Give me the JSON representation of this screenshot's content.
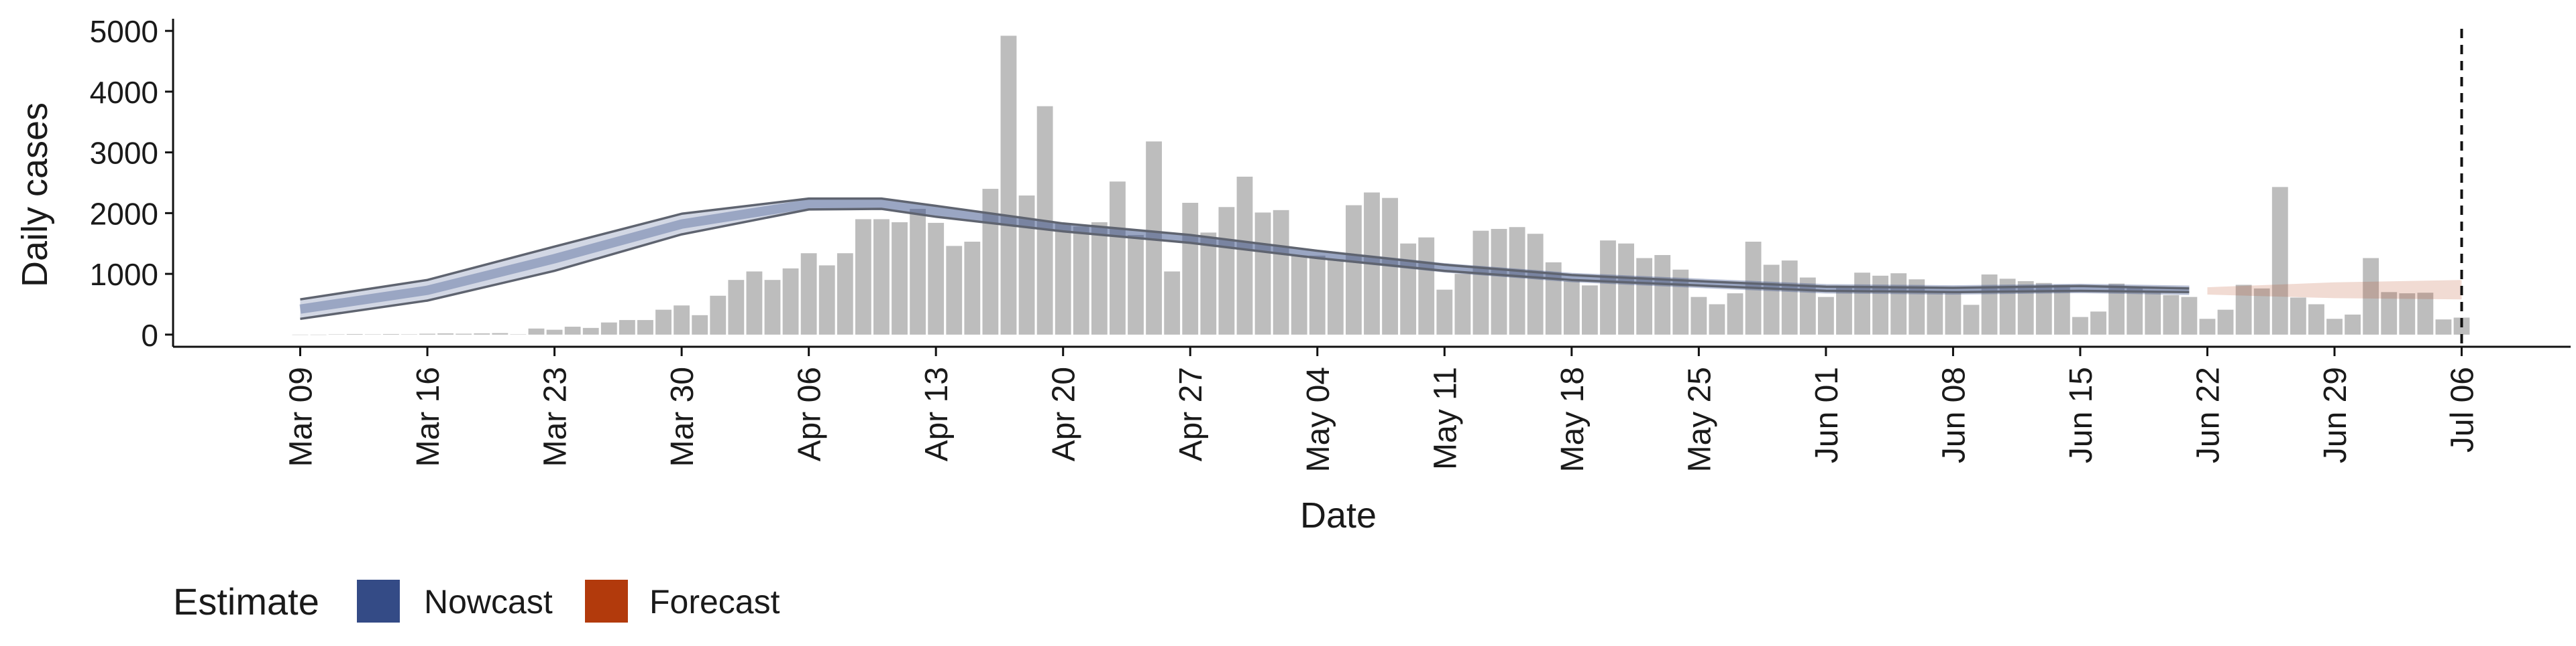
{
  "chart_data": {
    "type": "bar",
    "title": "",
    "xlabel": "Date",
    "ylabel": "Daily cases",
    "ylim": [
      -200,
      5200
    ],
    "y_ticks": [
      0,
      1000,
      2000,
      3000,
      4000,
      5000
    ],
    "x_tick_labels": [
      "Mar 09",
      "Mar 16",
      "Mar 23",
      "Mar 30",
      "Apr 06",
      "Apr 13",
      "Apr 20",
      "Apr 27",
      "May 04",
      "May 11",
      "May 18",
      "May 25",
      "Jun 01",
      "Jun 08",
      "Jun 15",
      "Jun 22",
      "Jun 29",
      "Jul 06"
    ],
    "x_tick_dates": [
      "2020-03-09",
      "2020-03-16",
      "2020-03-23",
      "2020-03-30",
      "2020-04-06",
      "2020-04-13",
      "2020-04-20",
      "2020-04-27",
      "2020-05-04",
      "2020-05-11",
      "2020-05-18",
      "2020-05-25",
      "2020-06-01",
      "2020-06-08",
      "2020-06-15",
      "2020-06-22",
      "2020-06-29",
      "2020-07-06"
    ],
    "x_range": [
      "2020-03-02",
      "2020-07-12"
    ],
    "grid": false,
    "legend": {
      "title": "Estimate",
      "placement": "bottom-left",
      "items": [
        {
          "label": "Nowcast",
          "color": "#344b86"
        },
        {
          "label": "Forecast",
          "color": "#b23a0c"
        }
      ]
    },
    "reference_line": {
      "date": "2020-07-06",
      "style": "dashed"
    },
    "bar_color": "#bdbdbd",
    "bars": [
      [
        "2020-03-09",
        0
      ],
      [
        "2020-03-10",
        0
      ],
      [
        "2020-03-11",
        5
      ],
      [
        "2020-03-12",
        10
      ],
      [
        "2020-03-13",
        5
      ],
      [
        "2020-03-14",
        10
      ],
      [
        "2020-03-15",
        5
      ],
      [
        "2020-03-16",
        15
      ],
      [
        "2020-03-17",
        20
      ],
      [
        "2020-03-18",
        15
      ],
      [
        "2020-03-19",
        20
      ],
      [
        "2020-03-20",
        25
      ],
      [
        "2020-03-21",
        5
      ],
      [
        "2020-03-22",
        100
      ],
      [
        "2020-03-23",
        80
      ],
      [
        "2020-03-24",
        130
      ],
      [
        "2020-03-25",
        110
      ],
      [
        "2020-03-26",
        200
      ],
      [
        "2020-03-27",
        240
      ],
      [
        "2020-03-28",
        240
      ],
      [
        "2020-03-29",
        410
      ],
      [
        "2020-03-30",
        480
      ],
      [
        "2020-03-31",
        320
      ],
      [
        "2020-04-01",
        640
      ],
      [
        "2020-04-02",
        900
      ],
      [
        "2020-04-03",
        1040
      ],
      [
        "2020-04-04",
        900
      ],
      [
        "2020-04-05",
        1090
      ],
      [
        "2020-04-06",
        1340
      ],
      [
        "2020-04-07",
        1140
      ],
      [
        "2020-04-08",
        1340
      ],
      [
        "2020-04-09",
        1900
      ],
      [
        "2020-04-10",
        1900
      ],
      [
        "2020-04-11",
        1850
      ],
      [
        "2020-04-12",
        2070
      ],
      [
        "2020-04-13",
        1840
      ],
      [
        "2020-04-14",
        1460
      ],
      [
        "2020-04-15",
        1530
      ],
      [
        "2020-04-16",
        2400
      ],
      [
        "2020-04-17",
        4920
      ],
      [
        "2020-04-18",
        2290
      ],
      [
        "2020-04-19",
        3760
      ],
      [
        "2020-04-20",
        1830
      ],
      [
        "2020-04-21",
        1780
      ],
      [
        "2020-04-22",
        1850
      ],
      [
        "2020-04-23",
        2520
      ],
      [
        "2020-04-24",
        1640
      ],
      [
        "2020-04-25",
        3180
      ],
      [
        "2020-04-26",
        1040
      ],
      [
        "2020-04-27",
        2170
      ],
      [
        "2020-04-28",
        1680
      ],
      [
        "2020-04-29",
        2100
      ],
      [
        "2020-04-30",
        2600
      ],
      [
        "2020-05-01",
        2010
      ],
      [
        "2020-05-02",
        2050
      ],
      [
        "2020-05-03",
        1300
      ],
      [
        "2020-05-04",
        1300
      ],
      [
        "2020-05-05",
        1240
      ],
      [
        "2020-05-06",
        2130
      ],
      [
        "2020-05-07",
        2340
      ],
      [
        "2020-05-08",
        2250
      ],
      [
        "2020-05-09",
        1500
      ],
      [
        "2020-05-10",
        1600
      ],
      [
        "2020-05-11",
        740
      ],
      [
        "2020-05-12",
        1000
      ],
      [
        "2020-05-13",
        1710
      ],
      [
        "2020-05-14",
        1740
      ],
      [
        "2020-05-15",
        1770
      ],
      [
        "2020-05-16",
        1660
      ],
      [
        "2020-05-17",
        1190
      ],
      [
        "2020-05-18",
        880
      ],
      [
        "2020-05-19",
        810
      ],
      [
        "2020-05-20",
        1550
      ],
      [
        "2020-05-21",
        1500
      ],
      [
        "2020-05-22",
        1260
      ],
      [
        "2020-05-23",
        1310
      ],
      [
        "2020-05-24",
        1070
      ],
      [
        "2020-05-25",
        620
      ],
      [
        "2020-05-26",
        500
      ],
      [
        "2020-05-27",
        680
      ],
      [
        "2020-05-28",
        1530
      ],
      [
        "2020-05-29",
        1150
      ],
      [
        "2020-05-30",
        1220
      ],
      [
        "2020-05-31",
        940
      ],
      [
        "2020-06-01",
        620
      ],
      [
        "2020-06-02",
        800
      ],
      [
        "2020-06-03",
        1020
      ],
      [
        "2020-06-04",
        970
      ],
      [
        "2020-06-05",
        1010
      ],
      [
        "2020-06-06",
        910
      ],
      [
        "2020-06-07",
        700
      ],
      [
        "2020-06-08",
        710
      ],
      [
        "2020-06-09",
        490
      ],
      [
        "2020-06-10",
        990
      ],
      [
        "2020-06-11",
        920
      ],
      [
        "2020-06-12",
        880
      ],
      [
        "2020-06-13",
        850
      ],
      [
        "2020-06-14",
        820
      ],
      [
        "2020-06-15",
        290
      ],
      [
        "2020-06-16",
        380
      ],
      [
        "2020-06-17",
        840
      ],
      [
        "2020-06-18",
        770
      ],
      [
        "2020-06-19",
        720
      ],
      [
        "2020-06-20",
        650
      ],
      [
        "2020-06-21",
        620
      ],
      [
        "2020-06-22",
        260
      ],
      [
        "2020-06-23",
        410
      ],
      [
        "2020-06-24",
        820
      ],
      [
        "2020-06-25",
        760
      ],
      [
        "2020-06-26",
        2430
      ],
      [
        "2020-06-27",
        610
      ],
      [
        "2020-06-28",
        500
      ],
      [
        "2020-06-29",
        260
      ],
      [
        "2020-06-30",
        330
      ],
      [
        "2020-07-01",
        1260
      ],
      [
        "2020-07-02",
        700
      ],
      [
        "2020-07-03",
        680
      ],
      [
        "2020-07-04",
        690
      ],
      [
        "2020-07-05",
        250
      ],
      [
        "2020-07-06",
        280
      ]
    ],
    "series": [
      {
        "estimate": "Nowcast",
        "color": "#344b86",
        "points": [
          [
            "2020-03-09",
            260,
            580
          ],
          [
            "2020-03-16",
            560,
            900
          ],
          [
            "2020-03-23",
            1050,
            1450
          ],
          [
            "2020-03-30",
            1650,
            1990
          ],
          [
            "2020-04-06",
            2060,
            2240
          ],
          [
            "2020-04-10",
            2070,
            2240
          ],
          [
            "2020-04-13",
            1940,
            2120
          ],
          [
            "2020-04-20",
            1700,
            1830
          ],
          [
            "2020-04-27",
            1510,
            1640
          ],
          [
            "2020-05-04",
            1260,
            1380
          ],
          [
            "2020-05-11",
            1050,
            1150
          ],
          [
            "2020-05-18",
            900,
            980
          ],
          [
            "2020-05-25",
            810,
            880
          ],
          [
            "2020-06-01",
            720,
            790
          ],
          [
            "2020-06-08",
            700,
            770
          ],
          [
            "2020-06-15",
            720,
            800
          ],
          [
            "2020-06-21",
            700,
            760
          ]
        ]
      },
      {
        "estimate": "Forecast",
        "color": "#b23a0c",
        "points": [
          [
            "2020-06-22",
            660,
            780
          ],
          [
            "2020-06-29",
            600,
            860
          ],
          [
            "2020-07-06",
            580,
            900
          ]
        ]
      }
    ]
  }
}
